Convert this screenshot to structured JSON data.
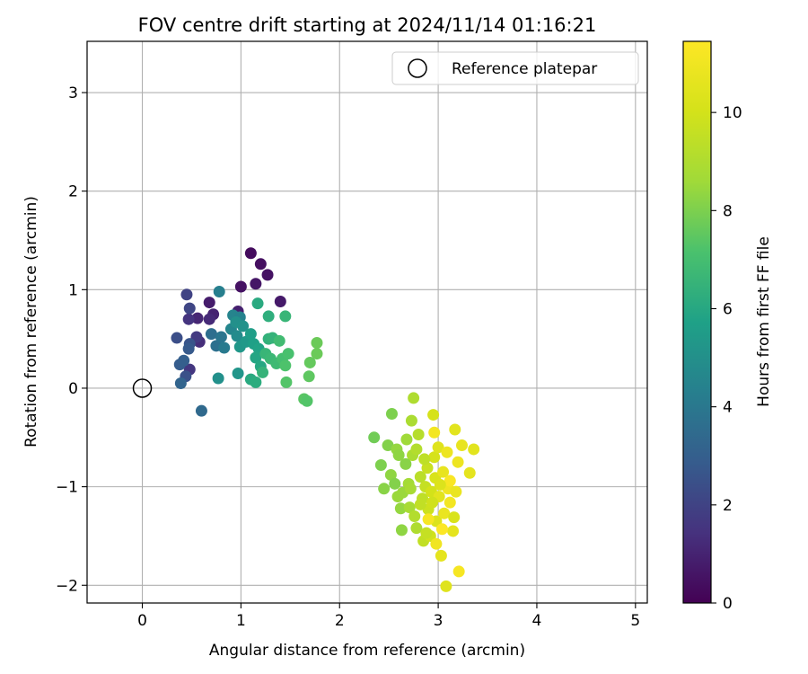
{
  "chart_data": {
    "type": "scatter",
    "title": "FOV centre drift starting at 2024/11/14 01:16:21",
    "xlabel": "Angular distance from reference (arcmin)",
    "ylabel": "Rotation from reference (arcmin)",
    "xlim": [
      -0.56,
      5.12
    ],
    "ylim": [
      -2.18,
      3.52
    ],
    "xticks": [
      "0",
      "1",
      "2",
      "3",
      "4",
      "5"
    ],
    "xtick_values": [
      0,
      1,
      2,
      3,
      4,
      5
    ],
    "yticks": [
      "−2",
      "−1",
      "0",
      "1",
      "2",
      "3"
    ],
    "ytick_values": [
      -2,
      -1,
      0,
      1,
      2,
      3
    ],
    "grid": true,
    "legend": {
      "position": "top-right",
      "entries": [
        {
          "label": "Reference platepar",
          "marker": "open-circle",
          "color": "#000000"
        }
      ]
    },
    "reference_point": {
      "x": 0,
      "y": 0
    },
    "colorbar": {
      "label": "Hours from first FF file",
      "range": [
        0,
        11.45
      ],
      "ticks": [
        "0",
        "2",
        "4",
        "6",
        "8",
        "10"
      ],
      "tick_values": [
        0,
        2,
        4,
        6,
        8,
        10
      ],
      "colormap": "viridis"
    },
    "series": [
      {
        "color_variable": "hours",
        "points": [
          {
            "x": 1.1,
            "y": 1.37,
            "h": 0.3
          },
          {
            "x": 1.2,
            "y": 1.26,
            "h": 0.4
          },
          {
            "x": 1.27,
            "y": 1.15,
            "h": 0.5
          },
          {
            "x": 1.15,
            "y": 1.06,
            "h": 0.6
          },
          {
            "x": 1.0,
            "y": 1.03,
            "h": 0.5
          },
          {
            "x": 1.4,
            "y": 0.88,
            "h": 0.7
          },
          {
            "x": 0.68,
            "y": 0.87,
            "h": 0.8
          },
          {
            "x": 0.97,
            "y": 0.78,
            "h": 0.9
          },
          {
            "x": 0.72,
            "y": 0.75,
            "h": 1.0
          },
          {
            "x": 0.56,
            "y": 0.71,
            "h": 1.1
          },
          {
            "x": 0.68,
            "y": 0.7,
            "h": 1.2
          },
          {
            "x": 0.58,
            "y": 0.47,
            "h": 1.3
          },
          {
            "x": 0.48,
            "y": 0.19,
            "h": 1.6
          },
          {
            "x": 0.47,
            "y": 0.7,
            "h": 1.5
          },
          {
            "x": 0.55,
            "y": 0.52,
            "h": 1.7
          },
          {
            "x": 0.45,
            "y": 0.95,
            "h": 2.0
          },
          {
            "x": 0.48,
            "y": 0.81,
            "h": 2.1
          },
          {
            "x": 0.35,
            "y": 0.51,
            "h": 2.4
          },
          {
            "x": 0.44,
            "y": 0.12,
            "h": 2.5
          },
          {
            "x": 0.48,
            "y": 0.45,
            "h": 2.6
          },
          {
            "x": 0.47,
            "y": 0.4,
            "h": 2.8
          },
          {
            "x": 0.38,
            "y": 0.24,
            "h": 2.9
          },
          {
            "x": 0.42,
            "y": 0.28,
            "h": 3.0
          },
          {
            "x": 0.39,
            "y": 0.05,
            "h": 3.2
          },
          {
            "x": 0.6,
            "y": -0.23,
            "h": 3.4
          },
          {
            "x": 0.7,
            "y": 0.55,
            "h": 3.6
          },
          {
            "x": 0.75,
            "y": 0.43,
            "h": 3.7
          },
          {
            "x": 0.8,
            "y": 0.52,
            "h": 3.9
          },
          {
            "x": 0.83,
            "y": 0.41,
            "h": 4.1
          },
          {
            "x": 0.78,
            "y": 0.98,
            "h": 4.3
          },
          {
            "x": 0.92,
            "y": 0.74,
            "h": 4.5
          },
          {
            "x": 0.99,
            "y": 0.72,
            "h": 4.4
          },
          {
            "x": 0.9,
            "y": 0.6,
            "h": 4.6
          },
          {
            "x": 0.96,
            "y": 0.53,
            "h": 4.8
          },
          {
            "x": 0.95,
            "y": 0.67,
            "h": 5.0
          },
          {
            "x": 1.02,
            "y": 0.63,
            "h": 5.1
          },
          {
            "x": 0.77,
            "y": 0.1,
            "h": 5.0
          },
          {
            "x": 0.97,
            "y": 0.15,
            "h": 5.2
          },
          {
            "x": 0.99,
            "y": 0.42,
            "h": 5.3
          },
          {
            "x": 1.05,
            "y": 0.47,
            "h": 5.4
          },
          {
            "x": 1.1,
            "y": 0.55,
            "h": 5.6
          },
          {
            "x": 1.13,
            "y": 0.45,
            "h": 5.7
          },
          {
            "x": 1.18,
            "y": 0.4,
            "h": 5.8
          },
          {
            "x": 1.15,
            "y": 0.31,
            "h": 5.9
          },
          {
            "x": 1.2,
            "y": 0.22,
            "h": 6.0
          },
          {
            "x": 1.1,
            "y": 0.09,
            "h": 6.1
          },
          {
            "x": 1.15,
            "y": 0.06,
            "h": 6.2
          },
          {
            "x": 1.17,
            "y": 0.86,
            "h": 6.1
          },
          {
            "x": 1.28,
            "y": 0.73,
            "h": 6.3
          },
          {
            "x": 1.28,
            "y": 0.5,
            "h": 6.4
          },
          {
            "x": 1.32,
            "y": 0.51,
            "h": 6.5
          },
          {
            "x": 1.25,
            "y": 0.35,
            "h": 6.6
          },
          {
            "x": 1.3,
            "y": 0.3,
            "h": 6.7
          },
          {
            "x": 1.22,
            "y": 0.16,
            "h": 6.5
          },
          {
            "x": 1.36,
            "y": 0.25,
            "h": 6.8
          },
          {
            "x": 1.39,
            "y": 0.48,
            "h": 6.9
          },
          {
            "x": 1.45,
            "y": 0.73,
            "h": 6.6
          },
          {
            "x": 1.42,
            "y": 0.3,
            "h": 7.0
          },
          {
            "x": 1.48,
            "y": 0.35,
            "h": 7.1
          },
          {
            "x": 1.45,
            "y": 0.23,
            "h": 7.2
          },
          {
            "x": 1.46,
            "y": 0.06,
            "h": 7.3
          },
          {
            "x": 1.64,
            "y": -0.11,
            "h": 7.4
          },
          {
            "x": 1.67,
            "y": -0.13,
            "h": 7.3
          },
          {
            "x": 1.69,
            "y": 0.12,
            "h": 7.5
          },
          {
            "x": 1.7,
            "y": 0.26,
            "h": 7.6
          },
          {
            "x": 1.77,
            "y": 0.46,
            "h": 7.7
          },
          {
            "x": 1.77,
            "y": 0.35,
            "h": 7.7
          },
          {
            "x": 2.35,
            "y": -0.5,
            "h": 7.8
          },
          {
            "x": 2.53,
            "y": -0.26,
            "h": 8.0
          },
          {
            "x": 2.49,
            "y": -0.58,
            "h": 8.1
          },
          {
            "x": 2.42,
            "y": -0.78,
            "h": 8.0
          },
          {
            "x": 2.45,
            "y": -1.02,
            "h": 8.2
          },
          {
            "x": 2.52,
            "y": -0.88,
            "h": 8.3
          },
          {
            "x": 2.58,
            "y": -0.62,
            "h": 8.4
          },
          {
            "x": 2.59,
            "y": -1.1,
            "h": 8.5
          },
          {
            "x": 2.62,
            "y": -1.22,
            "h": 8.4
          },
          {
            "x": 2.63,
            "y": -1.44,
            "h": 8.3
          },
          {
            "x": 2.68,
            "y": -0.52,
            "h": 8.6
          },
          {
            "x": 2.7,
            "y": -0.97,
            "h": 8.7
          },
          {
            "x": 2.71,
            "y": -1.21,
            "h": 8.8
          },
          {
            "x": 2.73,
            "y": -0.33,
            "h": 8.9
          },
          {
            "x": 2.75,
            "y": -0.1,
            "h": 9.0
          },
          {
            "x": 2.74,
            "y": -0.68,
            "h": 8.9
          },
          {
            "x": 2.76,
            "y": -1.3,
            "h": 9.1
          },
          {
            "x": 2.78,
            "y": -1.42,
            "h": 9.0
          },
          {
            "x": 2.8,
            "y": -0.47,
            "h": 9.2
          },
          {
            "x": 2.82,
            "y": -0.9,
            "h": 9.3
          },
          {
            "x": 2.84,
            "y": -1.12,
            "h": 9.4
          },
          {
            "x": 2.85,
            "y": -1.55,
            "h": 9.5
          },
          {
            "x": 2.87,
            "y": -1.0,
            "h": 9.6
          },
          {
            "x": 2.89,
            "y": -0.81,
            "h": 9.7
          },
          {
            "x": 2.9,
            "y": -1.23,
            "h": 9.8
          },
          {
            "x": 2.92,
            "y": -1.5,
            "h": 9.9
          },
          {
            "x": 2.93,
            "y": -1.05,
            "h": 10.0
          },
          {
            "x": 2.95,
            "y": -0.27,
            "h": 10.1
          },
          {
            "x": 2.96,
            "y": -0.7,
            "h": 10.1
          },
          {
            "x": 2.97,
            "y": -0.91,
            "h": 10.2
          },
          {
            "x": 2.98,
            "y": -1.35,
            "h": 10.3
          },
          {
            "x": 3.0,
            "y": -0.6,
            "h": 10.4
          },
          {
            "x": 3.01,
            "y": -1.1,
            "h": 10.5
          },
          {
            "x": 3.03,
            "y": -1.7,
            "h": 10.6
          },
          {
            "x": 3.05,
            "y": -0.85,
            "h": 10.7
          },
          {
            "x": 3.06,
            "y": -1.27,
            "h": 10.8
          },
          {
            "x": 3.08,
            "y": -2.01,
            "h": 10.4
          },
          {
            "x": 3.09,
            "y": -0.65,
            "h": 10.9
          },
          {
            "x": 3.1,
            "y": -1.02,
            "h": 11.0
          },
          {
            "x": 3.12,
            "y": -1.16,
            "h": 11.1
          },
          {
            "x": 3.15,
            "y": -1.45,
            "h": 10.6
          },
          {
            "x": 3.17,
            "y": -0.42,
            "h": 10.5
          },
          {
            "x": 3.18,
            "y": -1.05,
            "h": 10.8
          },
          {
            "x": 3.2,
            "y": -0.75,
            "h": 10.9
          },
          {
            "x": 3.21,
            "y": -1.86,
            "h": 11.2
          },
          {
            "x": 3.24,
            "y": -0.58,
            "h": 10.7
          },
          {
            "x": 3.32,
            "y": -0.86,
            "h": 10.6
          },
          {
            "x": 3.36,
            "y": -0.62,
            "h": 10.5
          },
          {
            "x": 3.12,
            "y": -0.94,
            "h": 11.3
          },
          {
            "x": 2.98,
            "y": -1.58,
            "h": 11.0
          },
          {
            "x": 2.9,
            "y": -1.33,
            "h": 11.2
          },
          {
            "x": 3.04,
            "y": -1.43,
            "h": 11.4
          },
          {
            "x": 2.96,
            "y": -0.45,
            "h": 11.1
          },
          {
            "x": 3.16,
            "y": -1.31,
            "h": 10.2
          },
          {
            "x": 2.67,
            "y": -0.77,
            "h": 8.2
          },
          {
            "x": 2.56,
            "y": -0.97,
            "h": 8.1
          },
          {
            "x": 2.64,
            "y": -1.06,
            "h": 8.5
          },
          {
            "x": 2.78,
            "y": -0.62,
            "h": 9.1
          },
          {
            "x": 2.82,
            "y": -1.18,
            "h": 9.5
          },
          {
            "x": 2.88,
            "y": -1.47,
            "h": 9.6
          },
          {
            "x": 2.94,
            "y": -1.16,
            "h": 9.9
          },
          {
            "x": 2.86,
            "y": -0.72,
            "h": 9.4
          },
          {
            "x": 3.02,
            "y": -0.98,
            "h": 10.3
          },
          {
            "x": 2.72,
            "y": -1.02,
            "h": 8.8
          },
          {
            "x": 2.6,
            "y": -0.68,
            "h": 8.3
          }
        ]
      }
    ]
  }
}
